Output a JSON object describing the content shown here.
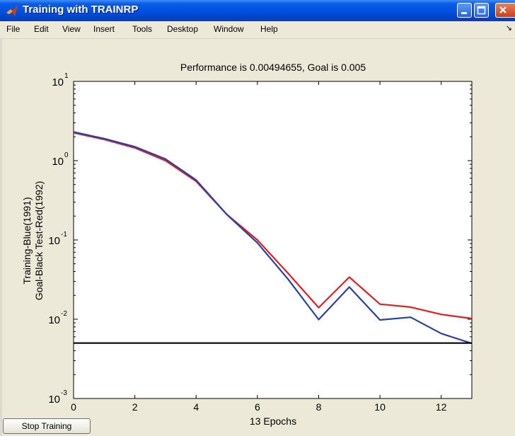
{
  "window": {
    "title": "Training with TRAINRP"
  },
  "menu": [
    "File",
    "Edit",
    "View",
    "Insert",
    "Tools",
    "Desktop",
    "Window",
    "Help"
  ],
  "buttons": {
    "stop_training": "Stop Training"
  },
  "chart_data": {
    "type": "line",
    "title": "Performance is 0.00494655, Goal is 0.005",
    "xlabel": "13 Epochs",
    "ylabel_lines": [
      "Training-Blue(1991)",
      "Goal-Black  Test-Red(1992)"
    ],
    "y_scale": "log",
    "xlim": [
      0,
      13
    ],
    "ylim": [
      0.001,
      10
    ],
    "x_ticks": [
      0,
      2,
      4,
      6,
      8,
      10,
      12
    ],
    "y_tick_bases": [
      "10",
      "10",
      "10",
      "10",
      "10"
    ],
    "y_tick_exponents": [
      "-3",
      "-2",
      "-1",
      "0",
      "1"
    ],
    "y_tick_values": [
      0.001,
      0.01,
      0.1,
      1,
      10
    ],
    "grid": false,
    "series": [
      {
        "color": "#e02020",
        "x": [
          0,
          1,
          2,
          3,
          4,
          5,
          6,
          7,
          8,
          9,
          10,
          11,
          12,
          13
        ],
        "y": [
          2.25,
          1.85,
          1.45,
          1.0,
          0.55,
          0.21,
          0.1,
          0.038,
          0.014,
          0.034,
          0.0155,
          0.0142,
          0.0115,
          0.0102
        ]
      },
      {
        "color": "#2a3fa8",
        "x": [
          0,
          1,
          2,
          3,
          4,
          5,
          6,
          7,
          8,
          9,
          10,
          11,
          12,
          13
        ],
        "y": [
          2.3,
          1.9,
          1.5,
          1.05,
          0.57,
          0.21,
          0.092,
          0.032,
          0.0099,
          0.0255,
          0.0098,
          0.0106,
          0.0066,
          0.00495
        ]
      },
      {
        "color": "#000000",
        "x": [
          0,
          13
        ],
        "y": [
          0.005,
          0.005
        ]
      }
    ]
  }
}
